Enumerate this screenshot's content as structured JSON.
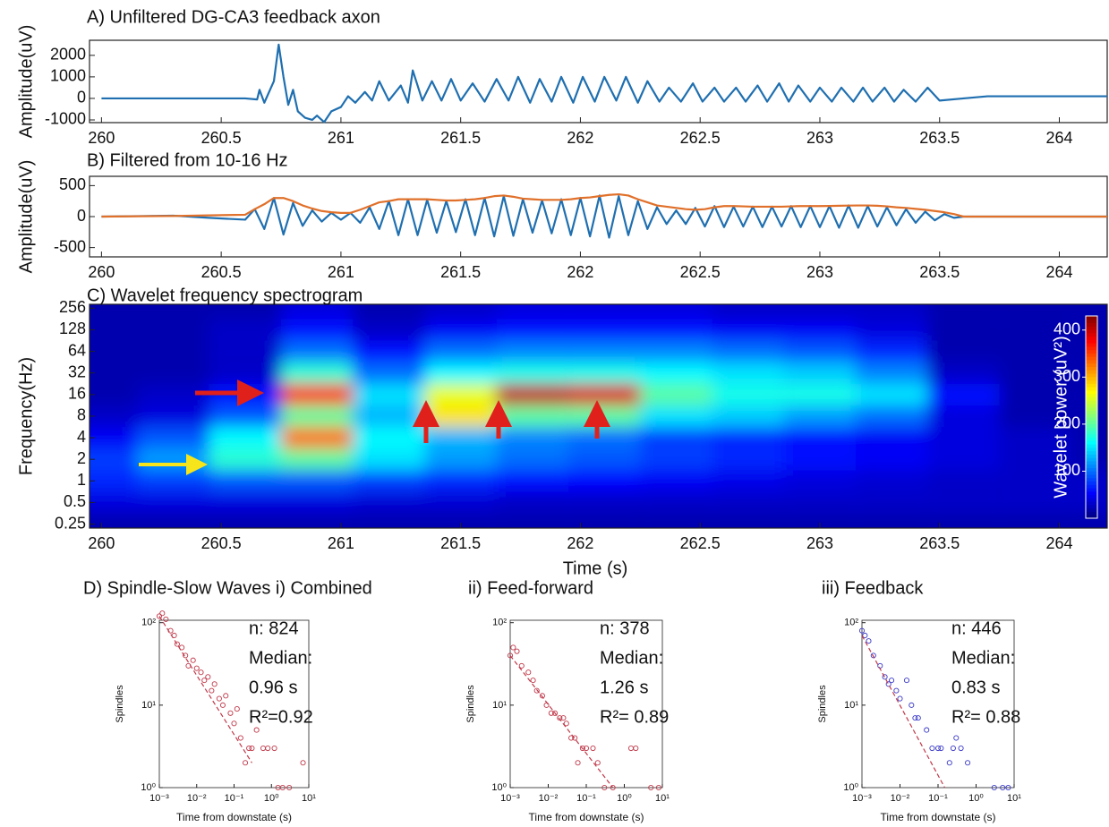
{
  "chart_data": [
    {
      "type": "line",
      "title": "A) Unfiltered DG-CA3 feedback axon",
      "ylabel": "Amplitude(uV)",
      "x": [
        260,
        260.3,
        260.6,
        260.65,
        260.66,
        260.68,
        260.7,
        260.72,
        260.74,
        260.76,
        260.78,
        260.8,
        260.82,
        260.85,
        260.88,
        260.9,
        260.93,
        260.96,
        261.0,
        261.03,
        261.06,
        261.1,
        261.13,
        261.16,
        261.2,
        261.25,
        261.28,
        261.3,
        261.34,
        261.38,
        261.42,
        261.46,
        261.5,
        261.55,
        261.6,
        261.65,
        261.7,
        261.74,
        261.79,
        261.83,
        261.88,
        261.92,
        261.97,
        262.01,
        262.06,
        262.1,
        262.15,
        262.19,
        262.24,
        262.28,
        262.33,
        262.37,
        262.42,
        262.47,
        262.51,
        262.56,
        262.6,
        262.65,
        262.69,
        262.74,
        262.78,
        262.83,
        262.87,
        262.91,
        262.96,
        263.0,
        263.05,
        263.09,
        263.14,
        263.18,
        263.22,
        263.27,
        263.31,
        263.35,
        263.4,
        263.45,
        263.5,
        263.6,
        263.7,
        264,
        264.2
      ],
      "series": [
        {
          "color": "#1f6fb0",
          "values": [
            0,
            0,
            0,
            -50,
            400,
            -200,
            300,
            800,
            2500,
            1000,
            -300,
            400,
            -600,
            -900,
            -1000,
            -800,
            -1100,
            -600,
            -400,
            100,
            -200,
            300,
            -100,
            800,
            -100,
            600,
            -200,
            1300,
            -100,
            800,
            -100,
            900,
            -100,
            700,
            -150,
            900,
            -100,
            1000,
            -200,
            900,
            -150,
            1000,
            -200,
            1000,
            -150,
            1000,
            -100,
            1000,
            -200,
            800,
            -150,
            500,
            -150,
            700,
            -150,
            500,
            -150,
            500,
            -150,
            600,
            -150,
            700,
            -150,
            600,
            -150,
            500,
            -150,
            500,
            -150,
            500,
            -150,
            500,
            -150,
            400,
            -150,
            500,
            -100,
            0,
            100,
            100,
            100
          ]
        }
      ],
      "xlim": [
        259.95,
        264.2
      ],
      "xticks": [
        260,
        260.5,
        261,
        261.5,
        262,
        262.5,
        263,
        263.5,
        264
      ],
      "ylim": [
        -1125,
        2700
      ],
      "yticks": [
        -1000,
        0,
        1000,
        2000
      ]
    },
    {
      "type": "line",
      "title": "B) Filtered from 10-16 Hz",
      "ylabel": "Amplitude(uV)",
      "x": [
        260,
        260.3,
        260.45,
        260.6,
        260.64,
        260.68,
        260.72,
        260.76,
        260.8,
        260.84,
        260.88,
        260.92,
        260.96,
        261.0,
        261.04,
        261.08,
        261.12,
        261.16,
        261.2,
        261.24,
        261.28,
        261.32,
        261.36,
        261.4,
        261.44,
        261.48,
        261.52,
        261.56,
        261.6,
        261.64,
        261.68,
        261.72,
        261.76,
        261.8,
        261.84,
        261.88,
        261.92,
        261.96,
        262.0,
        262.04,
        262.08,
        262.12,
        262.16,
        262.2,
        262.24,
        262.28,
        262.32,
        262.36,
        262.4,
        262.44,
        262.48,
        262.52,
        262.56,
        262.6,
        262.64,
        262.68,
        262.72,
        262.76,
        262.8,
        262.84,
        262.88,
        262.92,
        262.96,
        263.0,
        263.04,
        263.08,
        263.12,
        263.16,
        263.2,
        263.24,
        263.28,
        263.32,
        263.36,
        263.4,
        263.44,
        263.48,
        263.52,
        263.56,
        263.6,
        264.2
      ],
      "series": [
        {
          "color": "#1f6fb0",
          "values": [
            0,
            15,
            -20,
            -50,
            120,
            -200,
            300,
            -290,
            220,
            -150,
            100,
            -80,
            60,
            -50,
            60,
            -100,
            150,
            -200,
            250,
            -300,
            280,
            -300,
            270,
            -260,
            250,
            -250,
            280,
            -300,
            300,
            -320,
            330,
            -310,
            280,
            -260,
            260,
            -270,
            280,
            -300,
            300,
            -320,
            340,
            -340,
            330,
            -300,
            250,
            -200,
            150,
            -120,
            100,
            -120,
            140,
            -160,
            170,
            -170,
            160,
            -160,
            160,
            -170,
            160,
            -160,
            170,
            -170,
            170,
            -170,
            170,
            -180,
            180,
            -180,
            170,
            -160,
            150,
            -140,
            120,
            -100,
            80,
            -60,
            40,
            -20,
            0,
            0
          ]
        },
        {
          "color": "#e0702a",
          "values": [
            0,
            10,
            20,
            30,
            120,
            200,
            300,
            300,
            250,
            180,
            130,
            90,
            70,
            60,
            60,
            110,
            170,
            230,
            250,
            280,
            280,
            280,
            280,
            270,
            260,
            260,
            270,
            280,
            300,
            330,
            340,
            320,
            290,
            280,
            270,
            270,
            270,
            280,
            300,
            310,
            330,
            350,
            360,
            340,
            280,
            230,
            180,
            160,
            140,
            120,
            110,
            120,
            150,
            170,
            170,
            165,
            160,
            160,
            160,
            160,
            165,
            170,
            170,
            170,
            172,
            175,
            178,
            180,
            180,
            175,
            165,
            150,
            140,
            125,
            110,
            90,
            70,
            40,
            0,
            0
          ]
        }
      ],
      "xlim": [
        259.95,
        264.2
      ],
      "xticks": [
        260,
        260.5,
        261,
        261.5,
        262,
        262.5,
        263,
        263.5,
        264
      ],
      "ylim": [
        -650,
        650
      ],
      "yticks": [
        -500,
        0,
        500
      ]
    },
    {
      "type": "heatmap",
      "title": "C) Wavelet frequency spectrogram",
      "ylabel": "Frequency(Hz)",
      "xlabel": "Time (s)",
      "colorbar_label": "Wavelet power (uV²)",
      "x": [
        260.0,
        260.3,
        260.6,
        260.9,
        261.2,
        261.5,
        261.8,
        262.1,
        262.4,
        262.7,
        263.0,
        263.3,
        263.6,
        263.9,
        264.2
      ],
      "y": [
        0.25,
        0.5,
        1,
        2,
        4,
        8,
        16,
        32,
        64,
        128,
        256
      ],
      "z": [
        [
          20,
          20,
          20,
          20,
          20,
          20,
          20,
          20,
          20,
          20,
          20,
          20,
          20,
          20,
          20
        ],
        [
          40,
          40,
          40,
          40,
          35,
          35,
          30,
          30,
          30,
          30,
          30,
          30,
          30,
          30,
          30
        ],
        [
          70,
          80,
          90,
          90,
          80,
          70,
          60,
          55,
          50,
          45,
          40,
          35,
          30,
          30,
          30
        ],
        [
          80,
          120,
          180,
          200,
          150,
          120,
          100,
          90,
          80,
          70,
          60,
          50,
          40,
          30,
          20
        ],
        [
          50,
          90,
          160,
          330,
          160,
          130,
          110,
          100,
          80,
          70,
          60,
          50,
          40,
          30,
          20
        ],
        [
          30,
          40,
          90,
          200,
          130,
          280,
          200,
          200,
          150,
          140,
          120,
          100,
          40,
          20,
          20
        ],
        [
          20,
          30,
          60,
          360,
          150,
          260,
          400,
          390,
          200,
          170,
          170,
          150,
          60,
          20,
          20
        ],
        [
          20,
          20,
          30,
          180,
          100,
          160,
          170,
          170,
          160,
          150,
          140,
          110,
          30,
          20,
          20
        ],
        [
          20,
          20,
          30,
          100,
          60,
          100,
          110,
          110,
          110,
          100,
          90,
          70,
          20,
          20,
          20
        ],
        [
          20,
          20,
          30,
          60,
          30,
          50,
          60,
          60,
          60,
          50,
          50,
          40,
          20,
          20,
          20
        ],
        [
          20,
          20,
          20,
          40,
          20,
          30,
          40,
          40,
          40,
          30,
          30,
          30,
          20,
          20,
          20
        ]
      ],
      "clim": [
        0,
        430
      ],
      "cticks": [
        100,
        200,
        300,
        400
      ],
      "colormap": "jet",
      "xlim": [
        259.95,
        264.2
      ],
      "xticks": [
        260,
        260.5,
        261,
        261.5,
        262,
        262.5,
        263,
        263.5,
        264
      ],
      "yscale": "log",
      "ylim": [
        0.22,
        290
      ],
      "yticks": [
        0.25,
        0.5,
        1,
        2,
        4,
        8,
        16,
        32,
        64,
        128,
        256
      ]
    },
    {
      "type": "scatter",
      "title": "D) Spindle-Slow Waves i) Combined",
      "xlabel": "Time from downstate (s)",
      "ylabel": "Spindles",
      "annotations": [
        "n: 824",
        "Median:",
        "0.96 s",
        "R²=0.92"
      ],
      "series": [
        {
          "mode": "markers",
          "color": "#c0394a",
          "x": [
            0.001,
            0.0012,
            0.0015,
            0.002,
            0.0025,
            0.003,
            0.004,
            0.005,
            0.006,
            0.008,
            0.01,
            0.013,
            0.016,
            0.02,
            0.025,
            0.03,
            0.04,
            0.05,
            0.06,
            0.08,
            0.1,
            0.12,
            0.15,
            0.2,
            0.25,
            0.3,
            0.4,
            0.6,
            0.8,
            1.2,
            1.5,
            2,
            3,
            7
          ],
          "values": [
            120,
            130,
            110,
            80,
            70,
            55,
            50,
            40,
            30,
            35,
            28,
            25,
            20,
            22,
            15,
            18,
            12,
            10,
            13,
            8,
            6,
            9,
            4,
            2,
            3,
            3,
            5,
            3,
            3,
            3,
            1,
            1,
            1,
            2
          ]
        },
        {
          "mode": "line",
          "dash": true,
          "color": "#c0394a",
          "x": [
            0.001,
            0.3
          ],
          "values": [
            120,
            2
          ]
        }
      ],
      "xscale": "log",
      "yscale": "log",
      "xlim": [
        0.001,
        10
      ],
      "ylim": [
        1,
        107
      ],
      "xticks": [
        {
          "value": 0.001,
          "label": "10⁻³"
        },
        {
          "value": 0.01,
          "label": "10⁻²"
        },
        {
          "value": 0.1,
          "label": "10⁻¹"
        },
        {
          "value": 1,
          "label": "10⁰"
        },
        {
          "value": 10,
          "label": "10¹"
        }
      ],
      "yticks": [
        {
          "value": 1,
          "label": "10⁰"
        },
        {
          "value": 10,
          "label": "10¹"
        },
        {
          "value": 100,
          "label": "10²"
        }
      ]
    },
    {
      "type": "scatter",
      "title": "ii) Feed-forward",
      "xlabel": "Time from downstate (s)",
      "ylabel": "Spindles",
      "annotations": [
        "n: 378",
        "Median:",
        "1.26 s",
        "R²= 0.89"
      ],
      "series": [
        {
          "mode": "markers",
          "color": "#c0394a",
          "x": [
            0.001,
            0.0012,
            0.0015,
            0.002,
            0.003,
            0.004,
            0.005,
            0.007,
            0.009,
            0.012,
            0.015,
            0.02,
            0.025,
            0.03,
            0.04,
            0.05,
            0.06,
            0.08,
            0.1,
            0.15,
            0.2,
            0.3,
            0.5,
            1.5,
            2,
            5,
            8
          ],
          "values": [
            40,
            50,
            45,
            30,
            25,
            20,
            15,
            13,
            10,
            8,
            8,
            7,
            7,
            6,
            4,
            4,
            2,
            3,
            3,
            3,
            2,
            1,
            1,
            3,
            3,
            1,
            1
          ]
        },
        {
          "mode": "line",
          "dash": true,
          "color": "#c0394a",
          "x": [
            0.001,
            0.5
          ],
          "values": [
            40,
            1
          ]
        }
      ],
      "xscale": "log",
      "yscale": "log",
      "xlim": [
        0.001,
        10
      ],
      "ylim": [
        1,
        107
      ],
      "xticks": [
        {
          "value": 0.001,
          "label": "10⁻³"
        },
        {
          "value": 0.01,
          "label": "10⁻²"
        },
        {
          "value": 0.1,
          "label": "10⁻¹"
        },
        {
          "value": 1,
          "label": "10⁰"
        },
        {
          "value": 10,
          "label": "10¹"
        }
      ],
      "yticks": [
        {
          "value": 1,
          "label": "10⁰"
        },
        {
          "value": 10,
          "label": "10¹"
        },
        {
          "value": 100,
          "label": "10²"
        }
      ]
    },
    {
      "type": "scatter",
      "title": "iii) Feedback",
      "xlabel": "Time from downstate (s)",
      "ylabel": "Spindles",
      "annotations": [
        "n: 446",
        "Median:",
        "0.83 s",
        "R²= 0.88"
      ],
      "series": [
        {
          "mode": "markers",
          "color": "#3a3ac8",
          "x": [
            0.001,
            0.0012,
            0.0015,
            0.002,
            0.003,
            0.004,
            0.005,
            0.006,
            0.008,
            0.01,
            0.015,
            0.02,
            0.025,
            0.03,
            0.05,
            0.07,
            0.1,
            0.12,
            0.2,
            0.25,
            0.3,
            0.4,
            0.6,
            3,
            5,
            7
          ],
          "values": [
            80,
            70,
            60,
            40,
            30,
            22,
            18,
            20,
            15,
            12,
            20,
            10,
            7,
            7,
            5,
            3,
            3,
            3,
            2,
            3,
            4,
            3,
            2,
            1,
            1,
            1
          ]
        },
        {
          "mode": "line",
          "dash": true,
          "color": "#c0394a",
          "x": [
            0.001,
            0.15
          ],
          "values": [
            70,
            1
          ]
        }
      ],
      "xscale": "log",
      "yscale": "log",
      "xlim": [
        0.001,
        10
      ],
      "ylim": [
        1,
        107
      ],
      "xticks": [
        {
          "value": 0.001,
          "label": "10⁻³"
        },
        {
          "value": 0.01,
          "label": "10⁻²"
        },
        {
          "value": 0.1,
          "label": "10⁻¹"
        },
        {
          "value": 1,
          "label": "10⁰"
        },
        {
          "value": 10,
          "label": "10¹"
        }
      ],
      "yticks": [
        {
          "value": 1,
          "label": "10⁰"
        },
        {
          "value": 10,
          "label": "10¹"
        },
        {
          "value": 100,
          "label": "10²"
        }
      ]
    }
  ]
}
